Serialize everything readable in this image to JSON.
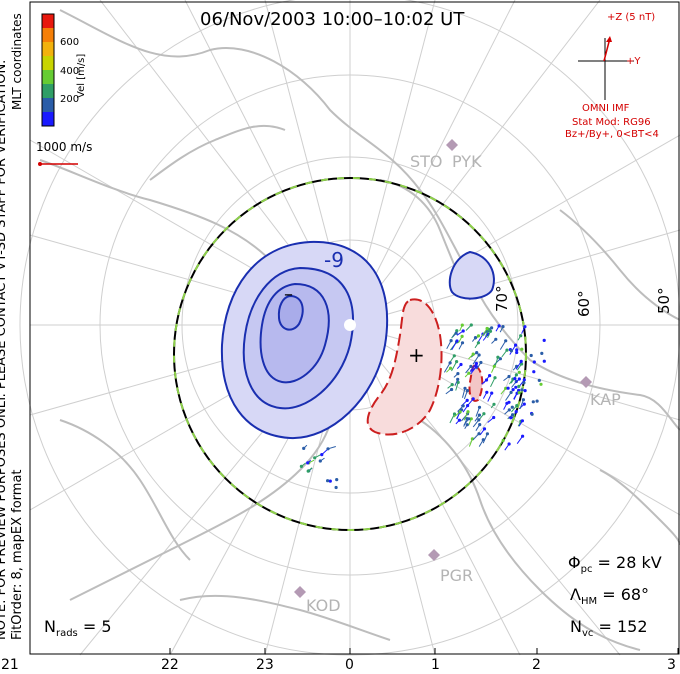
{
  "title": "06/Nov/2003 10:00–10:02 UT",
  "side_note": {
    "line1": "NOTE: FOR PREVIEW PURPOSES ONLY. PLEASE CONTACT VT-SD STAFF FOR VERIFICATION.",
    "line2": "FitOrder: 8,  mapEX format",
    "coords": "MLT coordinates"
  },
  "color_bar": {
    "label": "Vel [m/s]",
    "ticks": [
      "600",
      "400",
      "200"
    ],
    "colors": [
      "#e8180e",
      "#f57f08",
      "#f2b20d",
      "#c8d400",
      "#66cc33",
      "#2f9e66",
      "#2a5da8",
      "#1a1aff"
    ]
  },
  "scale_vector": {
    "label": "1000 m/s",
    "color": "#d40000"
  },
  "imf": {
    "bz_label": "+Z (5 nT)",
    "by_label": "+Y",
    "source": "OMNI IMF",
    "model_line1": "Stat Mod: RG96",
    "model_line2": "Bz+/By+, 0<BT<4",
    "color": "#d40000"
  },
  "radars": [
    {
      "code": "STO",
      "color": "#b4b4b4"
    },
    {
      "code": "PYK",
      "color": "#b4b4b4"
    },
    {
      "code": "KAP",
      "color": "#b4b4b4"
    },
    {
      "code": "PGR",
      "color": "#b4b4b4"
    },
    {
      "code": "KOD",
      "color": "#b4b4b4"
    }
  ],
  "lat_labels": [
    "70°",
    "60°",
    "50°"
  ],
  "contour_labels": {
    "neg_max": "-9",
    "neg_min": "–",
    "pos": "+"
  },
  "mlt_ticks": [
    "21",
    "22",
    "23",
    "0",
    "1",
    "2",
    "3"
  ],
  "stats": {
    "phi_symbol": "Φ",
    "phi_sub": "pc",
    "phi_value": "= 28 kV",
    "lambda_symbol": "Λ",
    "lambda_sub": "HM",
    "lambda_value": "= 68°",
    "nvc_symbol": "N",
    "nvc_sub": "vc",
    "nvc_value": "= 152",
    "nrads_symbol": "N",
    "nrads_sub": "rads",
    "nrads_value": "= 5"
  },
  "colors": {
    "negative_contour": "#1a2fb0",
    "negative_fill": "#d7d8f6",
    "positive_contour": "#cc1f1f",
    "positive_fill": "#f8dcdc",
    "boundary_green": "#8ed14a",
    "grid": "#cfcfcf",
    "coast": "#bdbdbd"
  }
}
